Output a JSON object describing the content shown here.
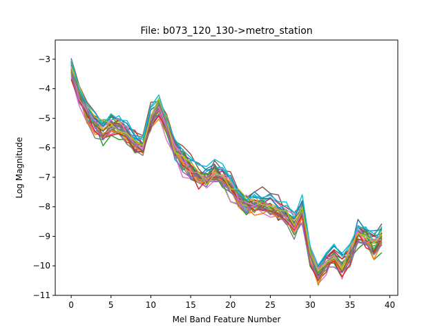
{
  "chart_data": {
    "type": "line",
    "title": "File: b073_120_130->metro_station",
    "xlabel": "Mel Band Feature Number",
    "ylabel": "Log Magnitude",
    "xlim": [
      -2,
      41
    ],
    "ylim": [
      -11,
      -2.35
    ],
    "xticks": [
      0,
      5,
      10,
      15,
      20,
      25,
      30,
      35,
      40
    ],
    "yticks": [
      -11,
      -10,
      -9,
      -8,
      -7,
      -6,
      -5,
      -4,
      -3
    ],
    "grid": false,
    "legend": "none",
    "x": [
      0,
      1,
      2,
      3,
      4,
      5,
      6,
      7,
      8,
      9,
      10,
      11,
      12,
      13,
      14,
      15,
      16,
      17,
      18,
      19,
      20,
      21,
      22,
      23,
      24,
      25,
      26,
      27,
      28,
      29,
      30,
      31,
      32,
      33,
      34,
      35,
      36,
      37,
      38,
      39
    ],
    "base_profile": [
      -3.3,
      -4.2,
      -4.8,
      -5.2,
      -5.4,
      -5.2,
      -5.3,
      -5.5,
      -5.8,
      -5.9,
      -5.0,
      -4.6,
      -5.2,
      -6.0,
      -6.4,
      -6.7,
      -7.0,
      -7.0,
      -6.8,
      -7.0,
      -7.3,
      -7.7,
      -7.9,
      -7.9,
      -7.9,
      -8.0,
      -8.1,
      -8.3,
      -8.6,
      -8.2,
      -9.6,
      -10.3,
      -9.9,
      -9.6,
      -10.0,
      -9.6,
      -8.9,
      -9.0,
      -9.3,
      -9.0
    ],
    "num_series": 30,
    "colors": [
      "#1f77b4",
      "#ff7f0e",
      "#2ca02c",
      "#d62728",
      "#9467bd",
      "#8c564b",
      "#e377c2",
      "#7f7f7f",
      "#bcbd22",
      "#17becf"
    ]
  }
}
